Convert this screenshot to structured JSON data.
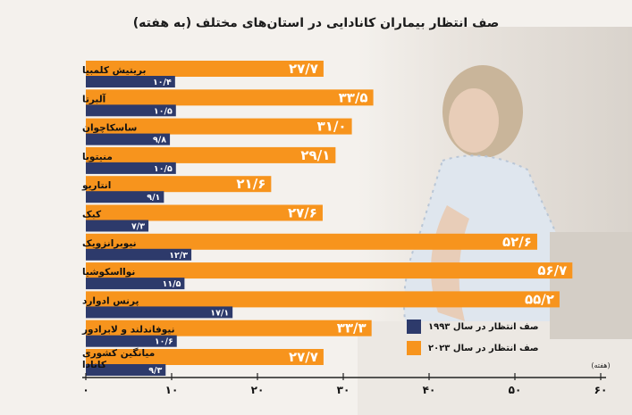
{
  "title": "صف انتظار بیماران کانادایی در استان‌های مختلف (به هفته)",
  "colors": {
    "series_1993": "#2d3a6b",
    "series_2023": "#f7941d",
    "axis": "#222222"
  },
  "chart_data": {
    "type": "bar",
    "orientation": "horizontal",
    "categories": [
      "بریتیش کلمبیا",
      "آلبرتا",
      "ساسکاچوان",
      "منیتوبا",
      "انتاریو",
      "کبک",
      "نیوبرانزویک",
      "نوااسکوشیا",
      "پرنس ادوارد",
      "نیوفاندلند و لابرادور",
      "میانگین کشوری کانادا"
    ],
    "series": [
      {
        "name": "صف انتظار در سال ۱۹۹۳",
        "values": [
          10.4,
          10.5,
          9.8,
          10.5,
          9.1,
          7.3,
          12.3,
          11.5,
          17.1,
          10.6,
          9.3
        ],
        "labels": [
          "۱۰/۴",
          "۱۰/۵",
          "۹/۸",
          "۱۰/۵",
          "۹/۱",
          "۷/۳",
          "۱۲/۳",
          "۱۱/۵",
          "۱۷/۱",
          "۱۰/۶",
          "۹/۳"
        ]
      },
      {
        "name": "صف انتظار در سال ۲۰۲۳",
        "values": [
          27.7,
          33.5,
          31.0,
          29.1,
          21.6,
          27.6,
          52.6,
          56.7,
          55.2,
          33.3,
          27.7
        ],
        "labels": [
          "۲۷/۷",
          "۳۳/۵",
          "۳۱/۰",
          "۲۹/۱",
          "۲۱/۶",
          "۲۷/۶",
          "۵۲/۶",
          "۵۶/۷",
          "۵۵/۲",
          "۳۳/۳",
          "۲۷/۷"
        ]
      }
    ],
    "xlim": [
      0,
      60
    ],
    "xticks": [
      0,
      10,
      20,
      30,
      40,
      50,
      60
    ],
    "xtick_labels": [
      "۰",
      "۱۰",
      "۲۰",
      "۳۰",
      "۴۰",
      "۵۰",
      "۶۰"
    ],
    "xlabel": "(هفته)",
    "grid": false,
    "legend_position": "bottom-right"
  }
}
